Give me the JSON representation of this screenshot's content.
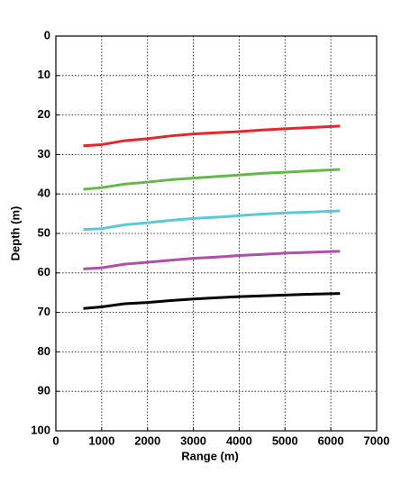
{
  "chart_data": {
    "type": "line",
    "xlabel": "Range (m)",
    "ylabel": "Depth (m)",
    "x": [
      600,
      1000,
      1500,
      2000,
      2500,
      3000,
      3500,
      4000,
      4500,
      5000,
      5500,
      6200
    ],
    "series": [
      {
        "color": "#e8252a",
        "values": [
          27.8,
          27.5,
          26.5,
          26.0,
          25.3,
          24.8,
          24.5,
          24.2,
          23.8,
          23.5,
          23.2,
          22.8
        ]
      },
      {
        "color": "#64b84a",
        "values": [
          38.8,
          38.4,
          37.5,
          37.0,
          36.4,
          36.0,
          35.6,
          35.2,
          34.8,
          34.5,
          34.2,
          33.8
        ]
      },
      {
        "color": "#5bc8d8",
        "values": [
          49.0,
          48.8,
          47.8,
          47.3,
          46.7,
          46.2,
          45.9,
          45.5,
          45.1,
          44.8,
          44.6,
          44.3
        ]
      },
      {
        "color": "#b04fa8",
        "values": [
          59.0,
          58.7,
          57.8,
          57.3,
          56.8,
          56.3,
          56.0,
          55.6,
          55.3,
          55.0,
          54.8,
          54.5
        ]
      },
      {
        "color": "#000000",
        "values": [
          69.0,
          68.6,
          67.8,
          67.5,
          67.0,
          66.6,
          66.3,
          66.0,
          65.8,
          65.6,
          65.4,
          65.2
        ]
      }
    ],
    "xlim": [
      0,
      7000
    ],
    "xticks": [
      0,
      1000,
      2000,
      3000,
      4000,
      5000,
      6000,
      7000
    ],
    "ylim": [
      0,
      100
    ],
    "yticks": [
      0,
      10,
      20,
      30,
      40,
      50,
      60,
      70,
      80,
      90,
      100
    ],
    "y_inverted": true,
    "grid": true
  }
}
